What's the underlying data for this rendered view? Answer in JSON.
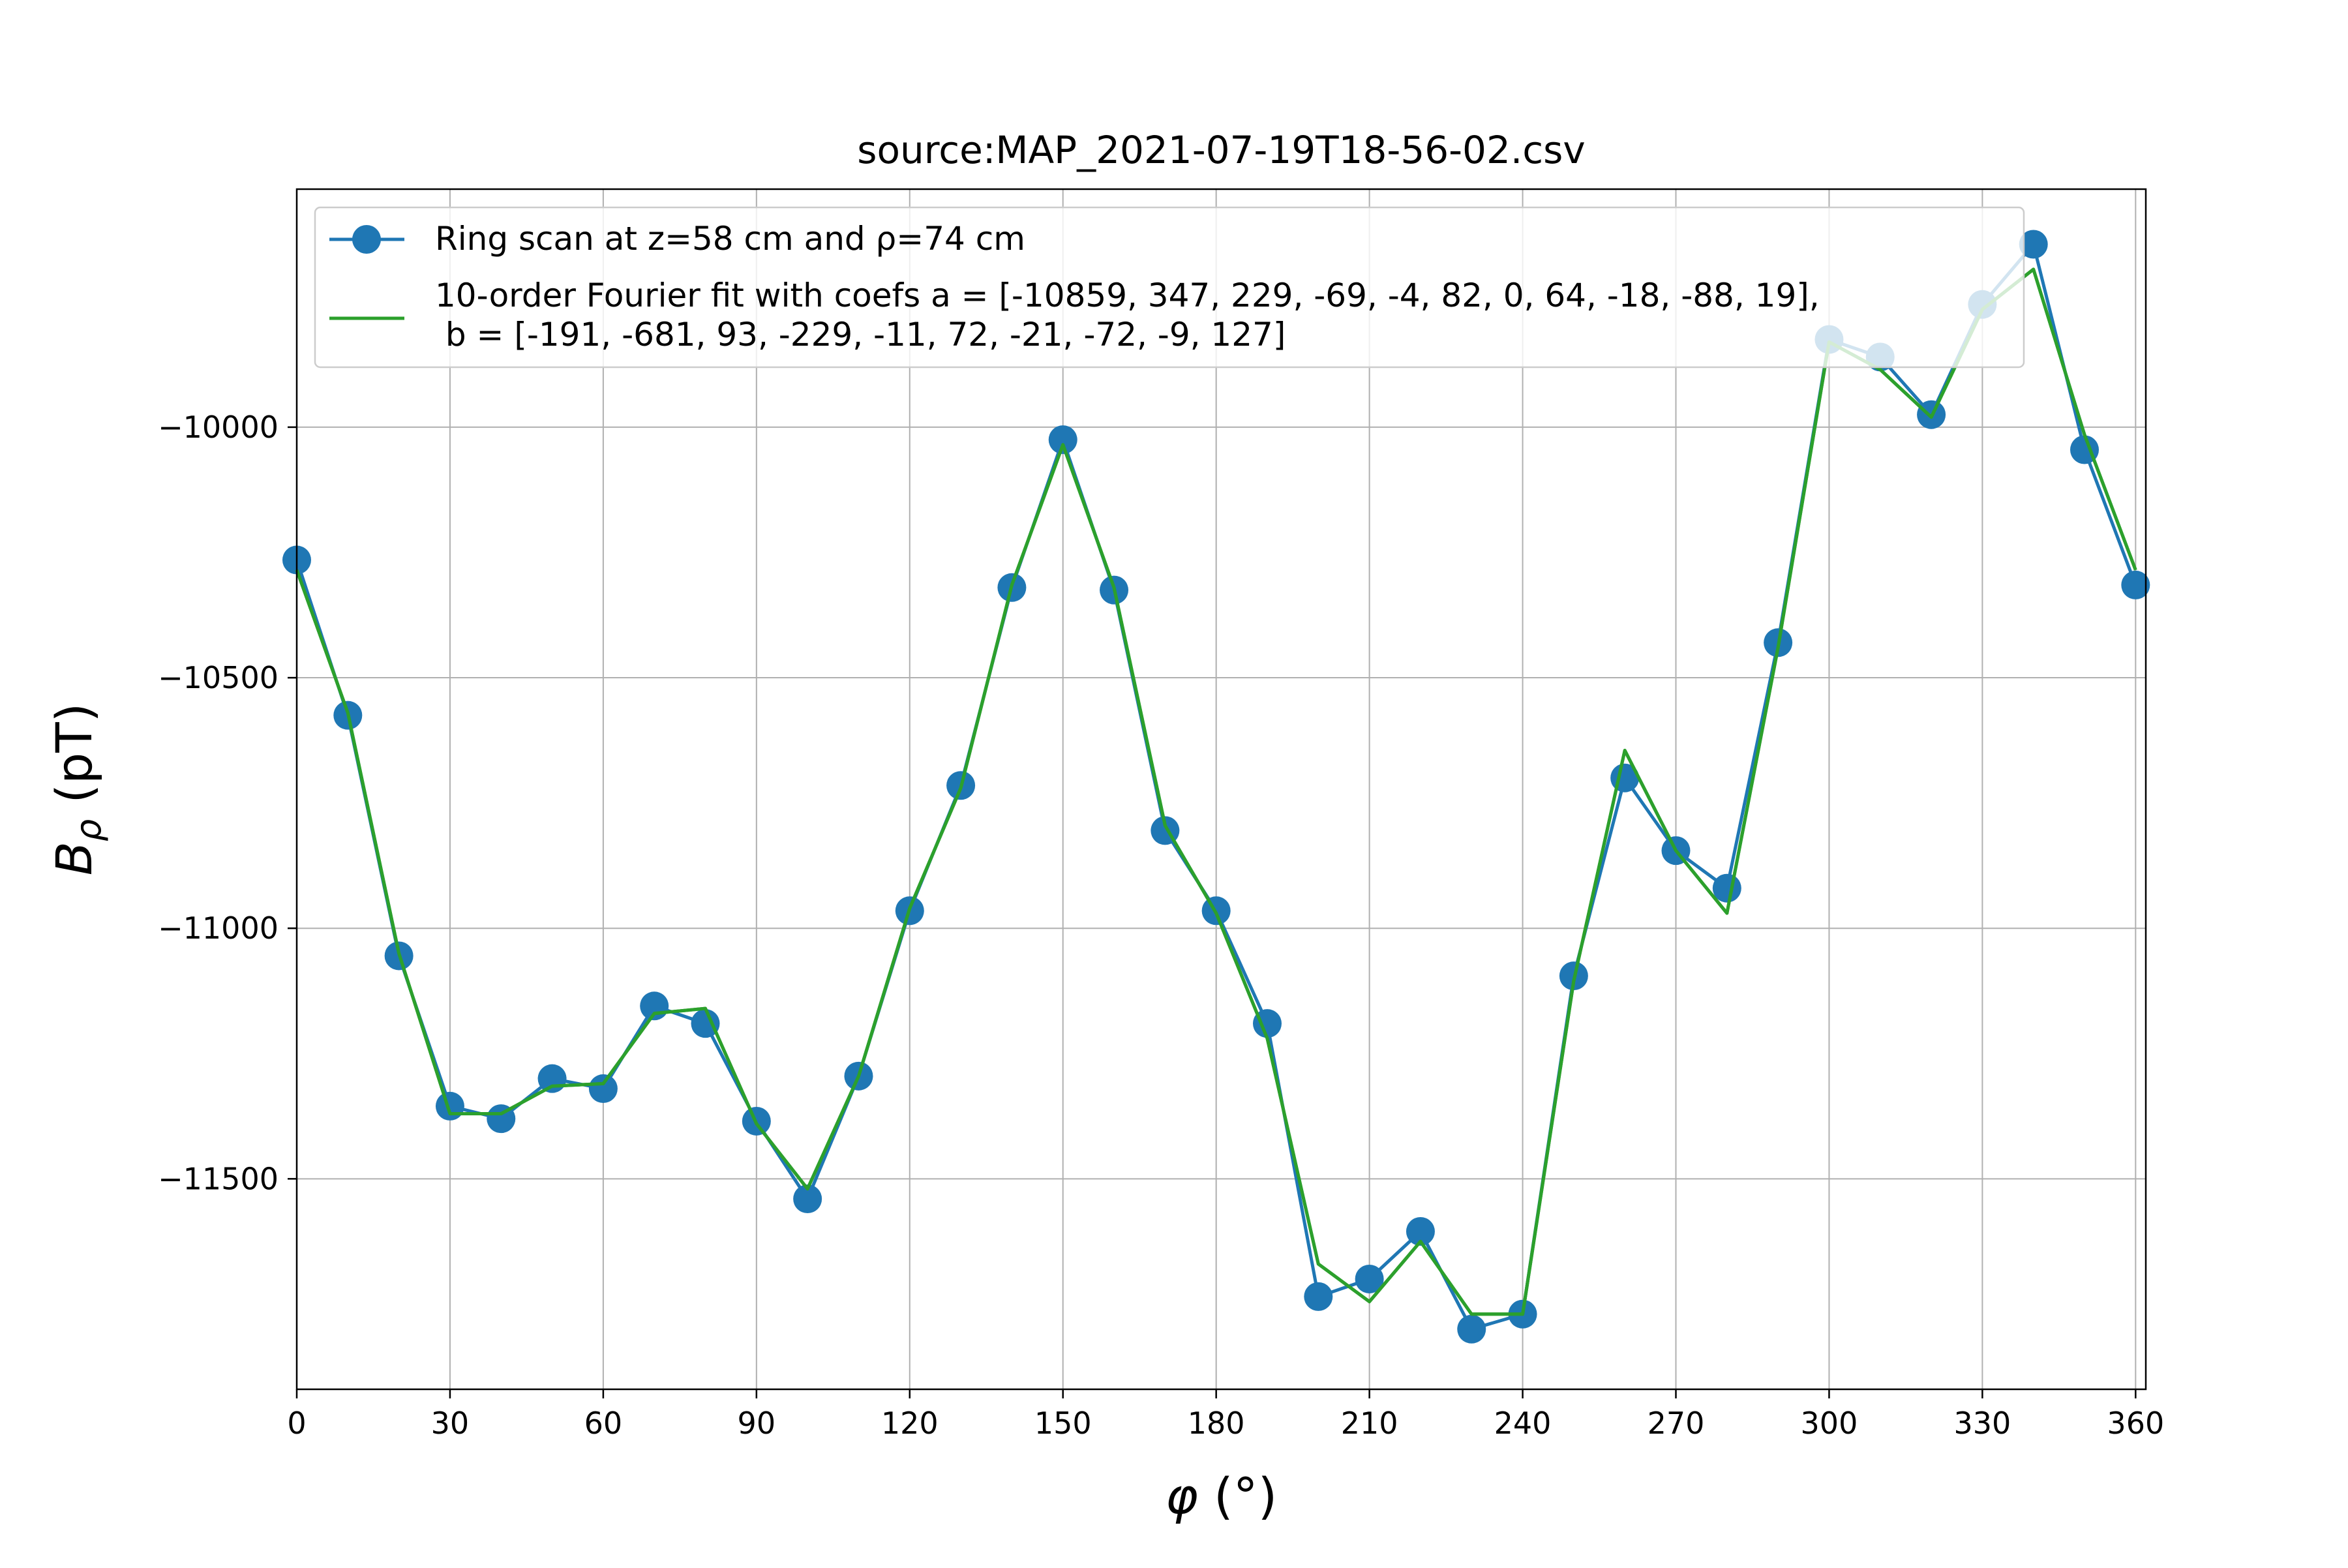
{
  "chart_data": {
    "type": "line",
    "title": "source:MAP_2021-07-19T18-56-02.csv",
    "xlabel_symbol": "φ",
    "xlabel_unit": " (°)",
    "ylabel_symbol": "B",
    "ylabel_sub": "ρ",
    "ylabel_unit": " (pT)",
    "xlim": [
      0,
      362
    ],
    "ylim": [
      -11920,
      -9525
    ],
    "xticks": [
      0,
      30,
      60,
      90,
      120,
      150,
      180,
      210,
      240,
      270,
      300,
      330,
      360
    ],
    "yticks": [
      -10000,
      -10500,
      -11000,
      -11500
    ],
    "ytick_labels": [
      "−10000",
      "−10500",
      "−11000",
      "−11500"
    ],
    "grid": true,
    "legend_position": "upper-left",
    "legend": [
      {
        "label": "Ring scan at z=58 cm and ρ=74 cm"
      },
      {
        "label_line1": "10-order Fourier fit with coefs a = [-10859, 347, 229, -69, -4, 82, 0, 64, -18, -88, 19],",
        "label_line2": " b = [-191, -681, 93, -229, -11, 72, -21, -72, -9, 127]"
      }
    ],
    "series": [
      {
        "name": "Ring scan at z=58 cm and ρ=74 cm",
        "color": "#1f77b4",
        "marker": "circle",
        "x": [
          0,
          10,
          20,
          30,
          40,
          50,
          60,
          70,
          80,
          90,
          100,
          110,
          120,
          130,
          140,
          150,
          160,
          170,
          180,
          190,
          200,
          210,
          220,
          230,
          240,
          250,
          260,
          270,
          280,
          290,
          300,
          310,
          320,
          330,
          340,
          350,
          360
        ],
        "y": [
          -10265,
          -10575,
          -11055,
          -11355,
          -11380,
          -11300,
          -11320,
          -11155,
          -11190,
          -11385,
          -11540,
          -11295,
          -10965,
          -10715,
          -10320,
          -10025,
          -10325,
          -10805,
          -10965,
          -11190,
          -11735,
          -11700,
          -11605,
          -11800,
          -11770,
          -11095,
          -10700,
          -10845,
          -10920,
          -10430,
          -9825,
          -9860,
          -9975,
          -9755,
          -9635,
          -10045,
          -10315
        ]
      },
      {
        "name": "10-order Fourier fit with coefs a = [-10859, 347, 229, -69, -4, 82, 0, 64, -18, -88, 19], b = [-191, -681, 93, -229, -11, 72, -21, -72, -9, 127]",
        "color": "#2ca02c",
        "marker": "none",
        "x": [
          0,
          10,
          20,
          30,
          40,
          50,
          60,
          70,
          80,
          90,
          100,
          110,
          120,
          130,
          140,
          150,
          160,
          170,
          180,
          190,
          200,
          210,
          220,
          230,
          240,
          250,
          260,
          270,
          280,
          290,
          300,
          310,
          320,
          330,
          340,
          350,
          360
        ],
        "y": [
          -10285,
          -10570,
          -11050,
          -11370,
          -11370,
          -11315,
          -11310,
          -11170,
          -11160,
          -11390,
          -11520,
          -11295,
          -10960,
          -10720,
          -10315,
          -10035,
          -10320,
          -10795,
          -10970,
          -11220,
          -11670,
          -11745,
          -11625,
          -11770,
          -11770,
          -11105,
          -10645,
          -10845,
          -10970,
          -10440,
          -9830,
          -9885,
          -9980,
          -9765,
          -9685,
          -10015,
          -10285
        ]
      }
    ]
  }
}
